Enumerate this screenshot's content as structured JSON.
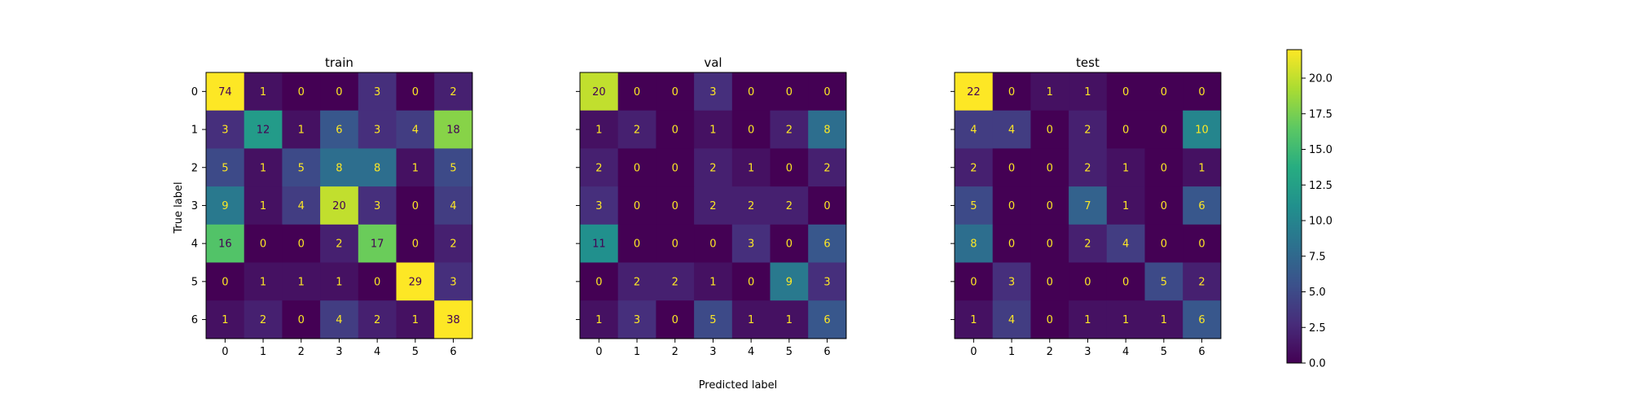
{
  "figure": {
    "xlabel": "Predicted label",
    "ylabel": "True label"
  },
  "colorbar": {
    "range": [
      0,
      22
    ],
    "ticks": [
      0.0,
      2.5,
      5.0,
      7.5,
      10.0,
      12.5,
      15.0,
      17.5,
      20.0
    ],
    "tick_labels": [
      "0.0",
      "2.5",
      "5.0",
      "7.5",
      "10.0",
      "12.5",
      "15.0",
      "17.5",
      "20.0"
    ],
    "colormap": "viridis"
  },
  "chart_data": [
    {
      "type": "heatmap",
      "title": "train",
      "xlabel": "Predicted label",
      "ylabel": "True label",
      "x_categories": [
        "0",
        "1",
        "2",
        "3",
        "4",
        "5",
        "6"
      ],
      "y_categories": [
        "0",
        "1",
        "2",
        "3",
        "4",
        "5",
        "6"
      ],
      "values": [
        [
          74,
          1,
          0,
          0,
          3,
          0,
          2
        ],
        [
          3,
          12,
          1,
          6,
          3,
          4,
          18
        ],
        [
          5,
          1,
          5,
          8,
          8,
          1,
          5
        ],
        [
          9,
          1,
          4,
          20,
          3,
          0,
          4
        ],
        [
          16,
          0,
          0,
          2,
          17,
          0,
          2
        ],
        [
          0,
          1,
          1,
          1,
          0,
          29,
          3
        ],
        [
          1,
          2,
          0,
          4,
          2,
          1,
          38
        ]
      ],
      "color_range": [
        0,
        22
      ],
      "show_y_tick_labels": true
    },
    {
      "type": "heatmap",
      "title": "val",
      "x_categories": [
        "0",
        "1",
        "2",
        "3",
        "4",
        "5",
        "6"
      ],
      "y_categories": [
        "0",
        "1",
        "2",
        "3",
        "4",
        "5",
        "6"
      ],
      "values": [
        [
          20,
          0,
          0,
          3,
          0,
          0,
          0
        ],
        [
          1,
          2,
          0,
          1,
          0,
          2,
          8
        ],
        [
          2,
          0,
          0,
          2,
          1,
          0,
          2
        ],
        [
          3,
          0,
          0,
          2,
          2,
          2,
          0
        ],
        [
          11,
          0,
          0,
          0,
          3,
          0,
          6
        ],
        [
          0,
          2,
          2,
          1,
          0,
          9,
          3
        ],
        [
          1,
          3,
          0,
          5,
          1,
          1,
          6
        ]
      ],
      "color_range": [
        0,
        22
      ],
      "show_y_tick_labels": false
    },
    {
      "type": "heatmap",
      "title": "test",
      "x_categories": [
        "0",
        "1",
        "2",
        "3",
        "4",
        "5",
        "6"
      ],
      "y_categories": [
        "0",
        "1",
        "2",
        "3",
        "4",
        "5",
        "6"
      ],
      "values": [
        [
          22,
          0,
          1,
          1,
          0,
          0,
          0
        ],
        [
          4,
          4,
          0,
          2,
          0,
          0,
          10
        ],
        [
          2,
          0,
          0,
          2,
          1,
          0,
          1
        ],
        [
          5,
          0,
          0,
          7,
          1,
          0,
          6
        ],
        [
          8,
          0,
          0,
          2,
          4,
          0,
          0
        ],
        [
          0,
          3,
          0,
          0,
          0,
          5,
          2
        ],
        [
          1,
          4,
          0,
          1,
          1,
          1,
          6
        ]
      ],
      "color_range": [
        0,
        22
      ],
      "show_y_tick_labels": false
    }
  ]
}
